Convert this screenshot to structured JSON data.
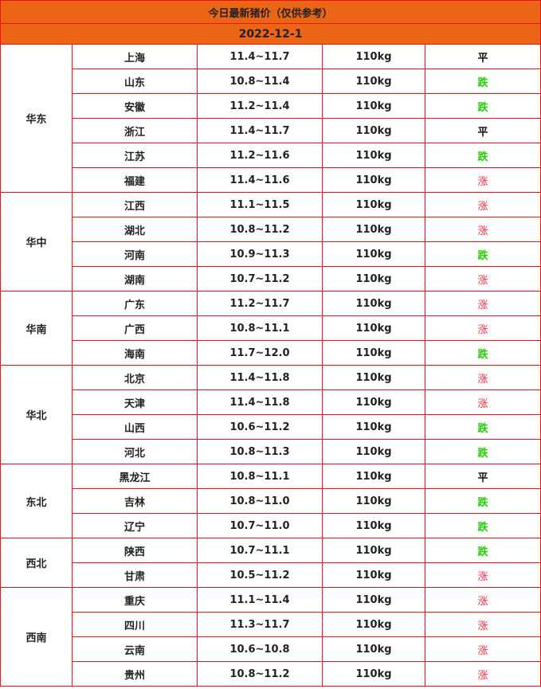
{
  "title": "今日最新猪价（仅供参考）",
  "date": "2022-12-1",
  "colors": {
    "header_bg": "#eb6517",
    "border": "#ee1111",
    "up": "#ff3344",
    "down": "#22cc00",
    "flat": "#111111"
  },
  "regions": [
    {
      "name": "华东",
      "rows": [
        {
          "province": "上海",
          "price": "11.4~11.7",
          "weight": "110kg",
          "trend": "平"
        },
        {
          "province": "山东",
          "price": "10.8~11.4",
          "weight": "110kg",
          "trend": "跌"
        },
        {
          "province": "安徽",
          "price": "11.2~11.4",
          "weight": "110kg",
          "trend": "跌"
        },
        {
          "province": "浙江",
          "price": "11.4~11.7",
          "weight": "110kg",
          "trend": "平"
        },
        {
          "province": "江苏",
          "price": "11.2~11.6",
          "weight": "110kg",
          "trend": "跌"
        },
        {
          "province": "福建",
          "price": "11.4~11.6",
          "weight": "110kg",
          "trend": "涨"
        }
      ]
    },
    {
      "name": "华中",
      "rows": [
        {
          "province": "江西",
          "price": "11.1~11.5",
          "weight": "110kg",
          "trend": "涨"
        },
        {
          "province": "湖北",
          "price": "10.8~11.2",
          "weight": "110kg",
          "trend": "涨"
        },
        {
          "province": "河南",
          "price": "10.9~11.3",
          "weight": "110kg",
          "trend": "跌"
        },
        {
          "province": "湖南",
          "price": "10.7~11.2",
          "weight": "110kg",
          "trend": "涨"
        }
      ]
    },
    {
      "name": "华南",
      "rows": [
        {
          "province": "广东",
          "price": "11.2~11.7",
          "weight": "110kg",
          "trend": "涨"
        },
        {
          "province": "广西",
          "price": "10.8~11.1",
          "weight": "110kg",
          "trend": "涨"
        },
        {
          "province": "海南",
          "price": "11.7~12.0",
          "weight": "110kg",
          "trend": "跌"
        }
      ]
    },
    {
      "name": "华北",
      "rows": [
        {
          "province": "北京",
          "price": "11.4~11.8",
          "weight": "110kg",
          "trend": "涨"
        },
        {
          "province": "天津",
          "price": "11.4~11.8",
          "weight": "110kg",
          "trend": "涨"
        },
        {
          "province": "山西",
          "price": "10.6~11.2",
          "weight": "110kg",
          "trend": "跌"
        },
        {
          "province": "河北",
          "price": "10.8~11.3",
          "weight": "110kg",
          "trend": "跌"
        }
      ]
    },
    {
      "name": "东北",
      "rows": [
        {
          "province": "黑龙江",
          "price": "10.8~11.1",
          "weight": "110kg",
          "trend": "平"
        },
        {
          "province": "吉林",
          "price": "10.8~11.0",
          "weight": "110kg",
          "trend": "跌"
        },
        {
          "province": "辽宁",
          "price": "10.7~11.0",
          "weight": "110kg",
          "trend": "跌"
        }
      ]
    },
    {
      "name": "西北",
      "rows": [
        {
          "province": "陕西",
          "price": "10.7~11.1",
          "weight": "110kg",
          "trend": "跌"
        },
        {
          "province": "甘肃",
          "price": "10.5~11.2",
          "weight": "110kg",
          "trend": "涨"
        }
      ]
    },
    {
      "name": "西南",
      "rows": [
        {
          "province": "重庆",
          "price": "11.1~11.4",
          "weight": "110kg",
          "trend": "涨"
        },
        {
          "province": "四川",
          "price": "11.3~11.7",
          "weight": "110kg",
          "trend": "涨"
        },
        {
          "province": "云南",
          "price": "10.6~10.8",
          "weight": "110kg",
          "trend": "涨"
        },
        {
          "province": "贵州",
          "price": "10.8~11.2",
          "weight": "110kg",
          "trend": "涨"
        }
      ]
    }
  ]
}
